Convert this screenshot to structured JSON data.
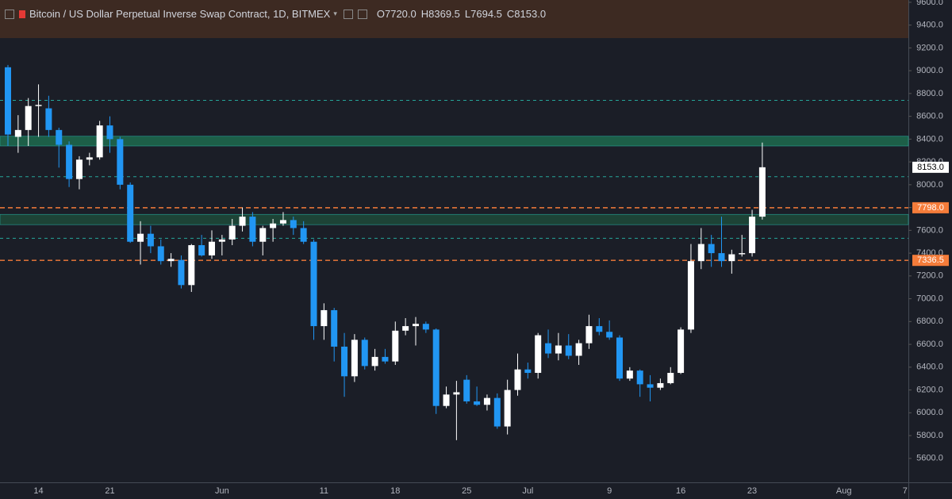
{
  "header": {
    "symbol": "Bitcoin / US Dollar Perpetual Inverse Swap Contract, 1D, BITMEX",
    "ohlc": [
      {
        "key": "O",
        "value": "7720.0"
      },
      {
        "key": "H",
        "value": "8369.5"
      },
      {
        "key": "L",
        "value": "7694.5"
      },
      {
        "key": "C",
        "value": "8153.0"
      }
    ]
  },
  "chart_data": {
    "type": "candlestick",
    "categories": [
      null,
      null,
      null,
      "14",
      null,
      null,
      null,
      null,
      null,
      null,
      "21",
      null,
      null,
      null,
      null,
      null,
      null,
      null,
      null,
      null,
      null,
      "Jun",
      null,
      null,
      null,
      null,
      null,
      null,
      null,
      null,
      null,
      "11",
      null,
      null,
      null,
      null,
      null,
      null,
      "18",
      null,
      null,
      null,
      null,
      null,
      null,
      "25",
      null,
      null,
      null,
      null,
      null,
      "Jul",
      null,
      null,
      null,
      null,
      null,
      null,
      null,
      "9",
      null,
      null,
      null,
      null,
      null,
      null,
      "16",
      null,
      null,
      null,
      null,
      null,
      null,
      "23",
      null,
      null,
      null,
      null,
      null,
      null,
      null,
      null,
      "Aug",
      null,
      null,
      null,
      null,
      null,
      "7"
    ],
    "open": [
      9030,
      8420,
      8480,
      8690,
      8670,
      8480,
      8350,
      8050,
      8220,
      8240,
      8520,
      8400,
      8000,
      7500,
      7570,
      7460,
      7330,
      7340,
      7120,
      7470,
      7380,
      7500,
      7520,
      7640,
      7720,
      7500,
      7620,
      7660,
      7690,
      7620,
      7500,
      6760,
      6900,
      6580,
      6320,
      6640,
      6410,
      6490,
      6450,
      6720,
      6760,
      6780,
      6730,
      6060,
      6160,
      6290,
      6100,
      6070,
      6130,
      5880,
      6200,
      6380,
      6350,
      6610,
      6520,
      6590,
      6500,
      6610,
      6760,
      6710,
      6660,
      6300,
      6370,
      6250,
      6220,
      6260,
      6350,
      6730,
      7330,
      7480,
      7400,
      7330,
      7390,
      7400,
      7720,
      null,
      null,
      null,
      null,
      null,
      null,
      null,
      null,
      null,
      null,
      null,
      null,
      null,
      null
    ],
    "high": [
      9050,
      8610,
      8760,
      8880,
      8780,
      8500,
      8380,
      8250,
      8280,
      8560,
      8600,
      8420,
      8020,
      7680,
      7640,
      7520,
      7400,
      7380,
      7480,
      7560,
      7600,
      7560,
      7700,
      7800,
      7760,
      7640,
      7700,
      7760,
      7720,
      7680,
      7520,
      6960,
      6920,
      6700,
      6690,
      6660,
      6560,
      6560,
      6800,
      6830,
      6840,
      6800,
      6740,
      6230,
      6280,
      6330,
      6230,
      6160,
      6170,
      6290,
      6520,
      6440,
      6700,
      6730,
      6700,
      6690,
      6640,
      6860,
      6830,
      6810,
      6680,
      6400,
      6380,
      6330,
      6300,
      6400,
      6750,
      7480,
      7620,
      7560,
      7720,
      7430,
      7560,
      7780,
      8369.5,
      null,
      null,
      null,
      null,
      null,
      null,
      null,
      null,
      null,
      null,
      null,
      null,
      null,
      null
    ],
    "low": [
      8340,
      8280,
      8340,
      8420,
      8420,
      8150,
      7980,
      7960,
      8170,
      8220,
      8280,
      7960,
      7490,
      7300,
      7400,
      7300,
      7280,
      7090,
      7060,
      7370,
      7350,
      7380,
      7470,
      7590,
      7460,
      7380,
      7500,
      7640,
      7560,
      7480,
      6640,
      6640,
      6450,
      6140,
      6270,
      6380,
      6370,
      6430,
      6420,
      6680,
      6590,
      6700,
      5990,
      6040,
      5760,
      6080,
      6060,
      6020,
      5860,
      5810,
      6150,
      6300,
      6300,
      6480,
      6460,
      6470,
      6420,
      6560,
      6680,
      6640,
      6280,
      6280,
      6140,
      6100,
      6200,
      6250,
      6340,
      6700,
      7260,
      7280,
      7280,
      7220,
      7370,
      7370,
      7694.5,
      null,
      null,
      null,
      null,
      null,
      null,
      null,
      null,
      null,
      null,
      null,
      null,
      null,
      null
    ],
    "close": [
      8440,
      8480,
      8690,
      8700,
      8480,
      8350,
      8050,
      8220,
      8240,
      8520,
      8400,
      8000,
      7500,
      7570,
      7460,
      7330,
      7350,
      7120,
      7470,
      7380,
      7500,
      7520,
      7640,
      7720,
      7500,
      7620,
      7660,
      7690,
      7620,
      7500,
      6760,
      6900,
      6580,
      6320,
      6640,
      6410,
      6490,
      6450,
      6720,
      6760,
      6780,
      6730,
      6060,
      6160,
      6180,
      6100,
      6070,
      6130,
      5880,
      6200,
      6380,
      6350,
      6680,
      6520,
      6590,
      6500,
      6610,
      6760,
      6710,
      6660,
      6300,
      6370,
      6250,
      6220,
      6260,
      6350,
      6730,
      7330,
      7480,
      7400,
      7330,
      7390,
      7400,
      7720,
      8153,
      null,
      null,
      null,
      null,
      null,
      null,
      null,
      null,
      null,
      null,
      null,
      null,
      null,
      null
    ],
    "up_color": "#ffffff",
    "down_color": "#2196f3",
    "ylim": [
      5390,
      9620
    ],
    "yticks": [
      {
        "value": 5600,
        "label": "5600.0"
      },
      {
        "value": 5800,
        "label": "5800.0"
      },
      {
        "value": 6000,
        "label": "6000.0"
      },
      {
        "value": 6200,
        "label": "6200.0"
      },
      {
        "value": 6400,
        "label": "6400.0"
      },
      {
        "value": 6600,
        "label": "6600.0"
      },
      {
        "value": 6800,
        "label": "6800.0"
      },
      {
        "value": 7000,
        "label": "7000.0"
      },
      {
        "value": 7200,
        "label": "7200.0"
      },
      {
        "value": 7400,
        "label": "7400.0"
      },
      {
        "value": 7600,
        "label": "7600.0"
      },
      {
        "value": 7800,
        "label": "7800.0"
      },
      {
        "value": 8000,
        "label": "8000.0"
      },
      {
        "value": 8200,
        "label": "8200.0"
      },
      {
        "value": 8400,
        "label": "8400.0"
      },
      {
        "value": 8600,
        "label": "8600.0"
      },
      {
        "value": 8800,
        "label": "8800.0"
      },
      {
        "value": 9000,
        "label": "9000.0"
      },
      {
        "value": 9200,
        "label": "9200.0"
      },
      {
        "value": 9400,
        "label": "9400.0"
      },
      {
        "value": 9600,
        "label": "9600.0"
      }
    ],
    "zones": [
      {
        "from": 8340,
        "to": 8425,
        "color": "#1d6b4f"
      },
      {
        "from": 7650,
        "to": 7740,
        "color": "#1d4a3a"
      }
    ],
    "levels": [
      {
        "value": 8740,
        "color": "#26a69a"
      },
      {
        "value": 8070,
        "color": "#26a69a"
      },
      {
        "value": 7530,
        "color": "#26a69a"
      },
      {
        "value": 7798,
        "label": "7798.0",
        "color": "#f57c3a"
      },
      {
        "value": 7336.5,
        "label": "7336.5",
        "color": "#f57c3a"
      }
    ],
    "last_price": {
      "value": 8153,
      "label": "8153.0",
      "color": "#ffffff"
    }
  }
}
